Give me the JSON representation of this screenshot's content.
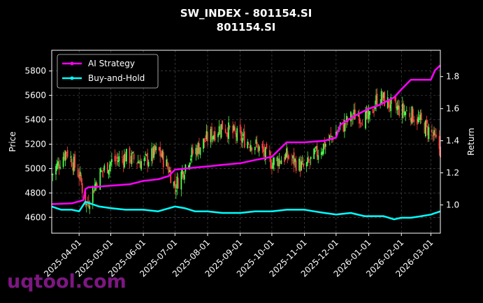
{
  "chart_data": {
    "type": "candlestick",
    "title": "SW_INDEX - 801154.SI",
    "subtitle": "801154.SI",
    "ylabel_left": "Price",
    "ylabel_right": "Return",
    "ylim_left": [
      4470,
      5970
    ],
    "ylim_right": [
      0.824,
      1.964
    ],
    "yticks_left": [
      4600,
      4800,
      5000,
      5200,
      5400,
      5600,
      5800
    ],
    "yticks_right": [
      1.0,
      1.2,
      1.4,
      1.6,
      1.8
    ],
    "ytick_labels_right": [
      "1.0",
      "1.2",
      "1.4",
      "1.6",
      "1.8"
    ],
    "x_range": [
      "2025-03-06",
      "2026-03-10"
    ],
    "x_ticks": [
      "2025-04-01",
      "2025-05-01",
      "2025-06-01",
      "2025-07-01",
      "2025-08-01",
      "2025-09-01",
      "2025-10-01",
      "2025-11-01",
      "2025-12-01",
      "2026-01-01",
      "2026-02-01",
      "2026-03-01"
    ],
    "grid": true,
    "legend": {
      "placement": "top-left",
      "entries": [
        {
          "name": "AI Strategy",
          "color": "#ff00ff"
        },
        {
          "name": "Buy-and-Hold",
          "color": "#00ffff"
        }
      ]
    },
    "candle_colors": {
      "up": "#4cff4c",
      "down": "#ff4040"
    },
    "price_close": [
      [
        "2025-03-06",
        4950
      ],
      [
        "2025-03-20",
        5150
      ],
      [
        "2025-04-01",
        4950
      ],
      [
        "2025-04-08",
        4700
      ],
      [
        "2025-04-20",
        4950
      ],
      [
        "2025-05-01",
        5050
      ],
      [
        "2025-05-15",
        5100
      ],
      [
        "2025-06-01",
        5050
      ],
      [
        "2025-06-15",
        5150
      ],
      [
        "2025-06-25",
        5000
      ],
      [
        "2025-07-01",
        4850
      ],
      [
        "2025-07-15",
        5100
      ],
      [
        "2025-08-01",
        5250
      ],
      [
        "2025-08-15",
        5350
      ],
      [
        "2025-09-01",
        5250
      ],
      [
        "2025-09-15",
        5200
      ],
      [
        "2025-10-01",
        5050
      ],
      [
        "2025-10-15",
        5100
      ],
      [
        "2025-11-01",
        5000
      ],
      [
        "2025-11-15",
        5150
      ],
      [
        "2025-12-01",
        5300
      ],
      [
        "2025-12-20",
        5450
      ],
      [
        "2026-01-01",
        5400
      ],
      [
        "2026-01-10",
        5600
      ],
      [
        "2026-01-25",
        5500
      ],
      [
        "2026-02-10",
        5450
      ],
      [
        "2026-03-01",
        5300
      ],
      [
        "2026-03-10",
        5150
      ]
    ],
    "series": [
      {
        "name": "AI Strategy",
        "x": [
          "2025-03-06",
          "2025-03-25",
          "2025-04-05",
          "2025-04-07",
          "2025-04-10",
          "2025-05-01",
          "2025-05-20",
          "2025-06-01",
          "2025-06-15",
          "2025-06-20",
          "2025-06-25",
          "2025-07-01",
          "2025-07-15",
          "2025-08-01",
          "2025-08-15",
          "2025-09-01",
          "2025-09-15",
          "2025-10-01",
          "2025-10-15",
          "2025-11-01",
          "2025-11-20",
          "2025-12-01",
          "2025-12-05",
          "2025-12-20",
          "2026-01-01",
          "2026-01-10",
          "2026-01-25",
          "2026-02-01",
          "2026-02-10",
          "2026-03-01",
          "2026-03-05",
          "2026-03-10"
        ],
        "values": [
          1.005,
          1.01,
          1.03,
          1.1,
          1.11,
          1.12,
          1.13,
          1.15,
          1.16,
          1.17,
          1.18,
          1.22,
          1.23,
          1.24,
          1.25,
          1.26,
          1.28,
          1.3,
          1.39,
          1.39,
          1.4,
          1.42,
          1.5,
          1.56,
          1.6,
          1.62,
          1.67,
          1.72,
          1.78,
          1.78,
          1.84,
          1.87
        ]
      },
      {
        "name": "Buy-and-Hold",
        "x": [
          "2025-03-06",
          "2025-03-15",
          "2025-03-25",
          "2025-04-01",
          "2025-04-04",
          "2025-04-07",
          "2025-04-20",
          "2025-05-01",
          "2025-05-15",
          "2025-06-01",
          "2025-06-15",
          "2025-07-01",
          "2025-07-10",
          "2025-07-20",
          "2025-08-01",
          "2025-08-15",
          "2025-09-01",
          "2025-09-15",
          "2025-10-01",
          "2025-10-15",
          "2025-11-01",
          "2025-11-10",
          "2025-11-20",
          "2025-12-01",
          "2025-12-15",
          "2025-12-28",
          "2026-01-05",
          "2026-01-15",
          "2026-01-25",
          "2026-02-01",
          "2026-02-10",
          "2026-02-20",
          "2026-03-01",
          "2026-03-10"
        ],
        "values": [
          0.99,
          0.97,
          0.97,
          0.96,
          0.99,
          1.02,
          0.99,
          0.98,
          0.97,
          0.97,
          0.96,
          0.99,
          0.98,
          0.96,
          0.96,
          0.95,
          0.95,
          0.96,
          0.96,
          0.97,
          0.97,
          0.96,
          0.95,
          0.94,
          0.95,
          0.93,
          0.93,
          0.93,
          0.91,
          0.92,
          0.92,
          0.93,
          0.94,
          0.96
        ]
      }
    ]
  },
  "watermark": "uqtool.com"
}
